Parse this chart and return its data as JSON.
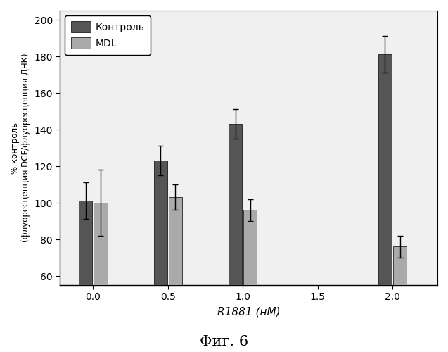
{
  "x_positions": [
    0.0,
    0.5,
    1.0,
    2.0
  ],
  "x_ticks": [
    0.0,
    0.5,
    1.0,
    1.5,
    2.0
  ],
  "x_tick_labels": [
    "0.0",
    "0.5",
    "1.0",
    "1.5",
    "2.0"
  ],
  "control_values": [
    101,
    123,
    143,
    181
  ],
  "mdl_values": [
    100,
    103,
    96,
    76
  ],
  "control_errors": [
    10,
    8,
    8,
    10
  ],
  "mdl_errors": [
    18,
    7,
    6,
    6
  ],
  "control_color": "#555555",
  "mdl_color": "#aaaaaa",
  "bar_width": 0.09,
  "bar_gap": 0.01,
  "ylim": [
    55,
    205
  ],
  "yticks": [
    60,
    80,
    100,
    120,
    140,
    160,
    180,
    200
  ],
  "xlabel": "R1881 (нМ)",
  "ylabel": "% контроль\n(флуоресценция DCF/флуоресценция ДНК)",
  "legend_labels": [
    "Контроль",
    "MDL"
  ],
  "title_bottom": "Фиг. 6",
  "background_color": "#ffffff",
  "figure_bg": "#ffffff",
  "axes_bg": "#f0f0f0"
}
